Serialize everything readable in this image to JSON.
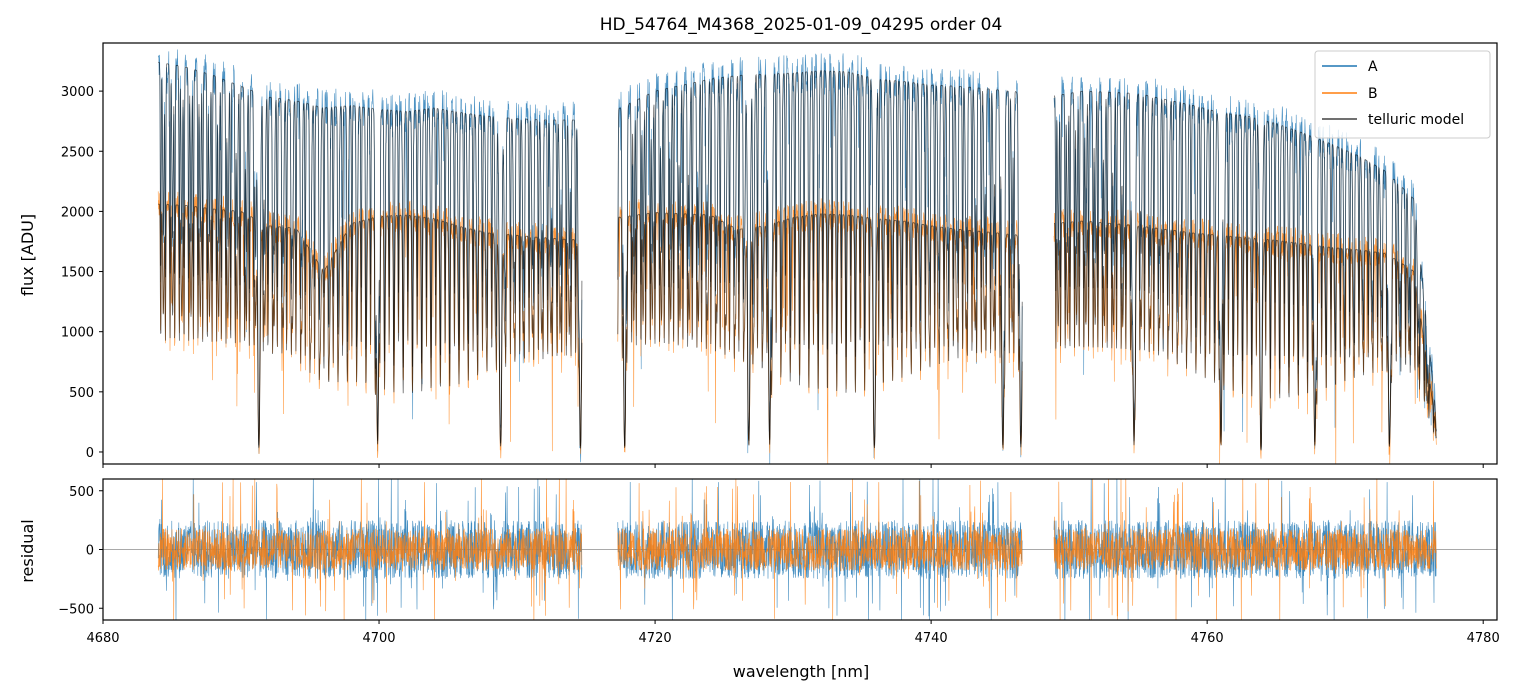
{
  "figure": {
    "title": "HD_54764_M4368_2025-01-09_04295  order 04",
    "xlabel": "wavelength [nm]"
  },
  "colors": {
    "A": "#1f77b4",
    "B": "#ff7f0e",
    "telluric": "#000000",
    "axes": "#000000",
    "zero_line": "#555555"
  },
  "chart_data": [
    {
      "type": "line",
      "panel": "flux",
      "title": "HD_54764_M4368_2025-01-09_04295  order 04",
      "xlabel": "",
      "ylabel": "flux [ADU]",
      "xlim": [
        4680,
        4781
      ],
      "ylim": [
        -100,
        3400
      ],
      "x_ticks": [
        4680,
        4700,
        4720,
        4740,
        4760,
        4780
      ],
      "x_ticklabels_visible": false,
      "y_ticks": [
        0,
        500,
        1000,
        1500,
        2000,
        2500,
        3000
      ],
      "y_ticklabels": [
        "0",
        "500",
        "1000",
        "1500",
        "2000",
        "2500",
        "3000"
      ],
      "grid": false,
      "legend": {
        "location": "top-right",
        "entries": [
          "A",
          "B",
          "telluric model"
        ]
      },
      "segments": [
        [
          4684.0,
          4714.7
        ],
        [
          4717.3,
          4746.6
        ],
        [
          4748.9,
          4776.6
        ]
      ],
      "series": [
        {
          "name": "A",
          "color": "#1f77b4",
          "envelope": [
            {
              "x": [
                4684,
                4686,
                4688,
                4690,
                4692,
                4694,
                4696,
                4698,
                4700,
                4702,
                4704,
                4706,
                4708,
                4710,
                4712,
                4714.7
              ],
              "y": [
                3240,
                3200,
                3130,
                3040,
                2950,
                2920,
                2860,
                2880,
                2850,
                2830,
                2860,
                2820,
                2790,
                2770,
                2760,
                2760
              ]
            },
            {
              "x": [
                4717.3,
                4720,
                4722,
                4724,
                4726,
                4728,
                4730,
                4732,
                4734,
                4736,
                4738,
                4740,
                4742,
                4744,
                4746.6
              ],
              "y": [
                2850,
                3000,
                3050,
                3100,
                3130,
                3140,
                3150,
                3170,
                3160,
                3100,
                3080,
                3050,
                3040,
                3020,
                2990
              ]
            },
            {
              "x": [
                4748.9,
                4751,
                4753,
                4755,
                4757,
                4759,
                4761,
                4763,
                4765,
                4767,
                4769,
                4771,
                4773,
                4775,
                4776.6
              ],
              "y": [
                2960,
                3000,
                2990,
                2980,
                2930,
                2880,
                2820,
                2790,
                2730,
                2650,
                2560,
                2460,
                2330,
                2100,
                300
              ]
            }
          ]
        },
        {
          "name": "B",
          "color": "#ff7f0e",
          "envelope": [
            {
              "x": [
                4684,
                4686,
                4688,
                4690,
                4692,
                4694,
                4696,
                4698,
                4700,
                4702,
                4704,
                4706,
                4708,
                4710,
                4712,
                4714.7
              ],
              "y": [
                2060,
                2050,
                2020,
                2000,
                1880,
                1860,
                1500,
                1900,
                1960,
                1970,
                1940,
                1870,
                1820,
                1800,
                1780,
                1760
              ]
            },
            {
              "x": [
                4717.3,
                4720,
                4722,
                4724,
                4726,
                4728,
                4730,
                4732,
                4734,
                4736,
                4738,
                4740,
                4742,
                4744,
                4746.6
              ],
              "y": [
                1950,
                1990,
                1980,
                1970,
                1850,
                1880,
                1950,
                1980,
                1970,
                1940,
                1920,
                1880,
                1850,
                1830,
                1800
              ]
            },
            {
              "x": [
                4748.9,
                4751,
                4753,
                4755,
                4757,
                4759,
                4761,
                4763,
                4765,
                4767,
                4769,
                4771,
                4773,
                4775,
                4776.6
              ],
              "y": [
                1900,
                1920,
                1900,
                1880,
                1850,
                1820,
                1800,
                1780,
                1760,
                1730,
                1700,
                1680,
                1650,
                1500,
                200
              ]
            }
          ]
        },
        {
          "name": "telluric model",
          "color": "#000000",
          "absorption_lines_nm": [
            4691.3,
            4699.9,
            4708.8,
            4714.6,
            4717.8,
            4726.8,
            4728.3,
            4735.9,
            4745.2,
            4746.5,
            4754.7,
            4761.0,
            4763.9,
            4767.8,
            4773.2
          ]
        }
      ]
    },
    {
      "type": "line",
      "panel": "residual",
      "xlabel": "wavelength [nm]",
      "ylabel": "residual",
      "xlim": [
        4680,
        4781
      ],
      "ylim": [
        -600,
        600
      ],
      "x_ticks": [
        4680,
        4700,
        4720,
        4740,
        4760,
        4780
      ],
      "x_ticklabels": [
        "4680",
        "4700",
        "4720",
        "4740",
        "4760",
        "4780"
      ],
      "y_ticks": [
        -500,
        0,
        500
      ],
      "y_ticklabels": [
        "−500",
        "0",
        "500"
      ],
      "zero_line": 0,
      "grid": false,
      "series": [
        {
          "name": "A",
          "color": "#1f77b4",
          "typical_amplitude": 250,
          "max_amplitude": 600
        },
        {
          "name": "B",
          "color": "#ff7f0e",
          "typical_amplitude": 180,
          "max_amplitude": 600
        }
      ]
    }
  ]
}
